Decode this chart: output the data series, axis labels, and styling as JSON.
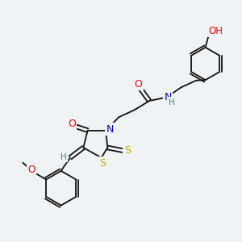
{
  "bg_color": "#eff3f5",
  "atom_colors": {
    "O": "#ff0000",
    "N": "#0000cc",
    "S": "#ccaa00",
    "H": "#2d8a8a",
    "C": "#111111"
  },
  "bond_color": "#111111",
  "bond_lw": 1.3
}
